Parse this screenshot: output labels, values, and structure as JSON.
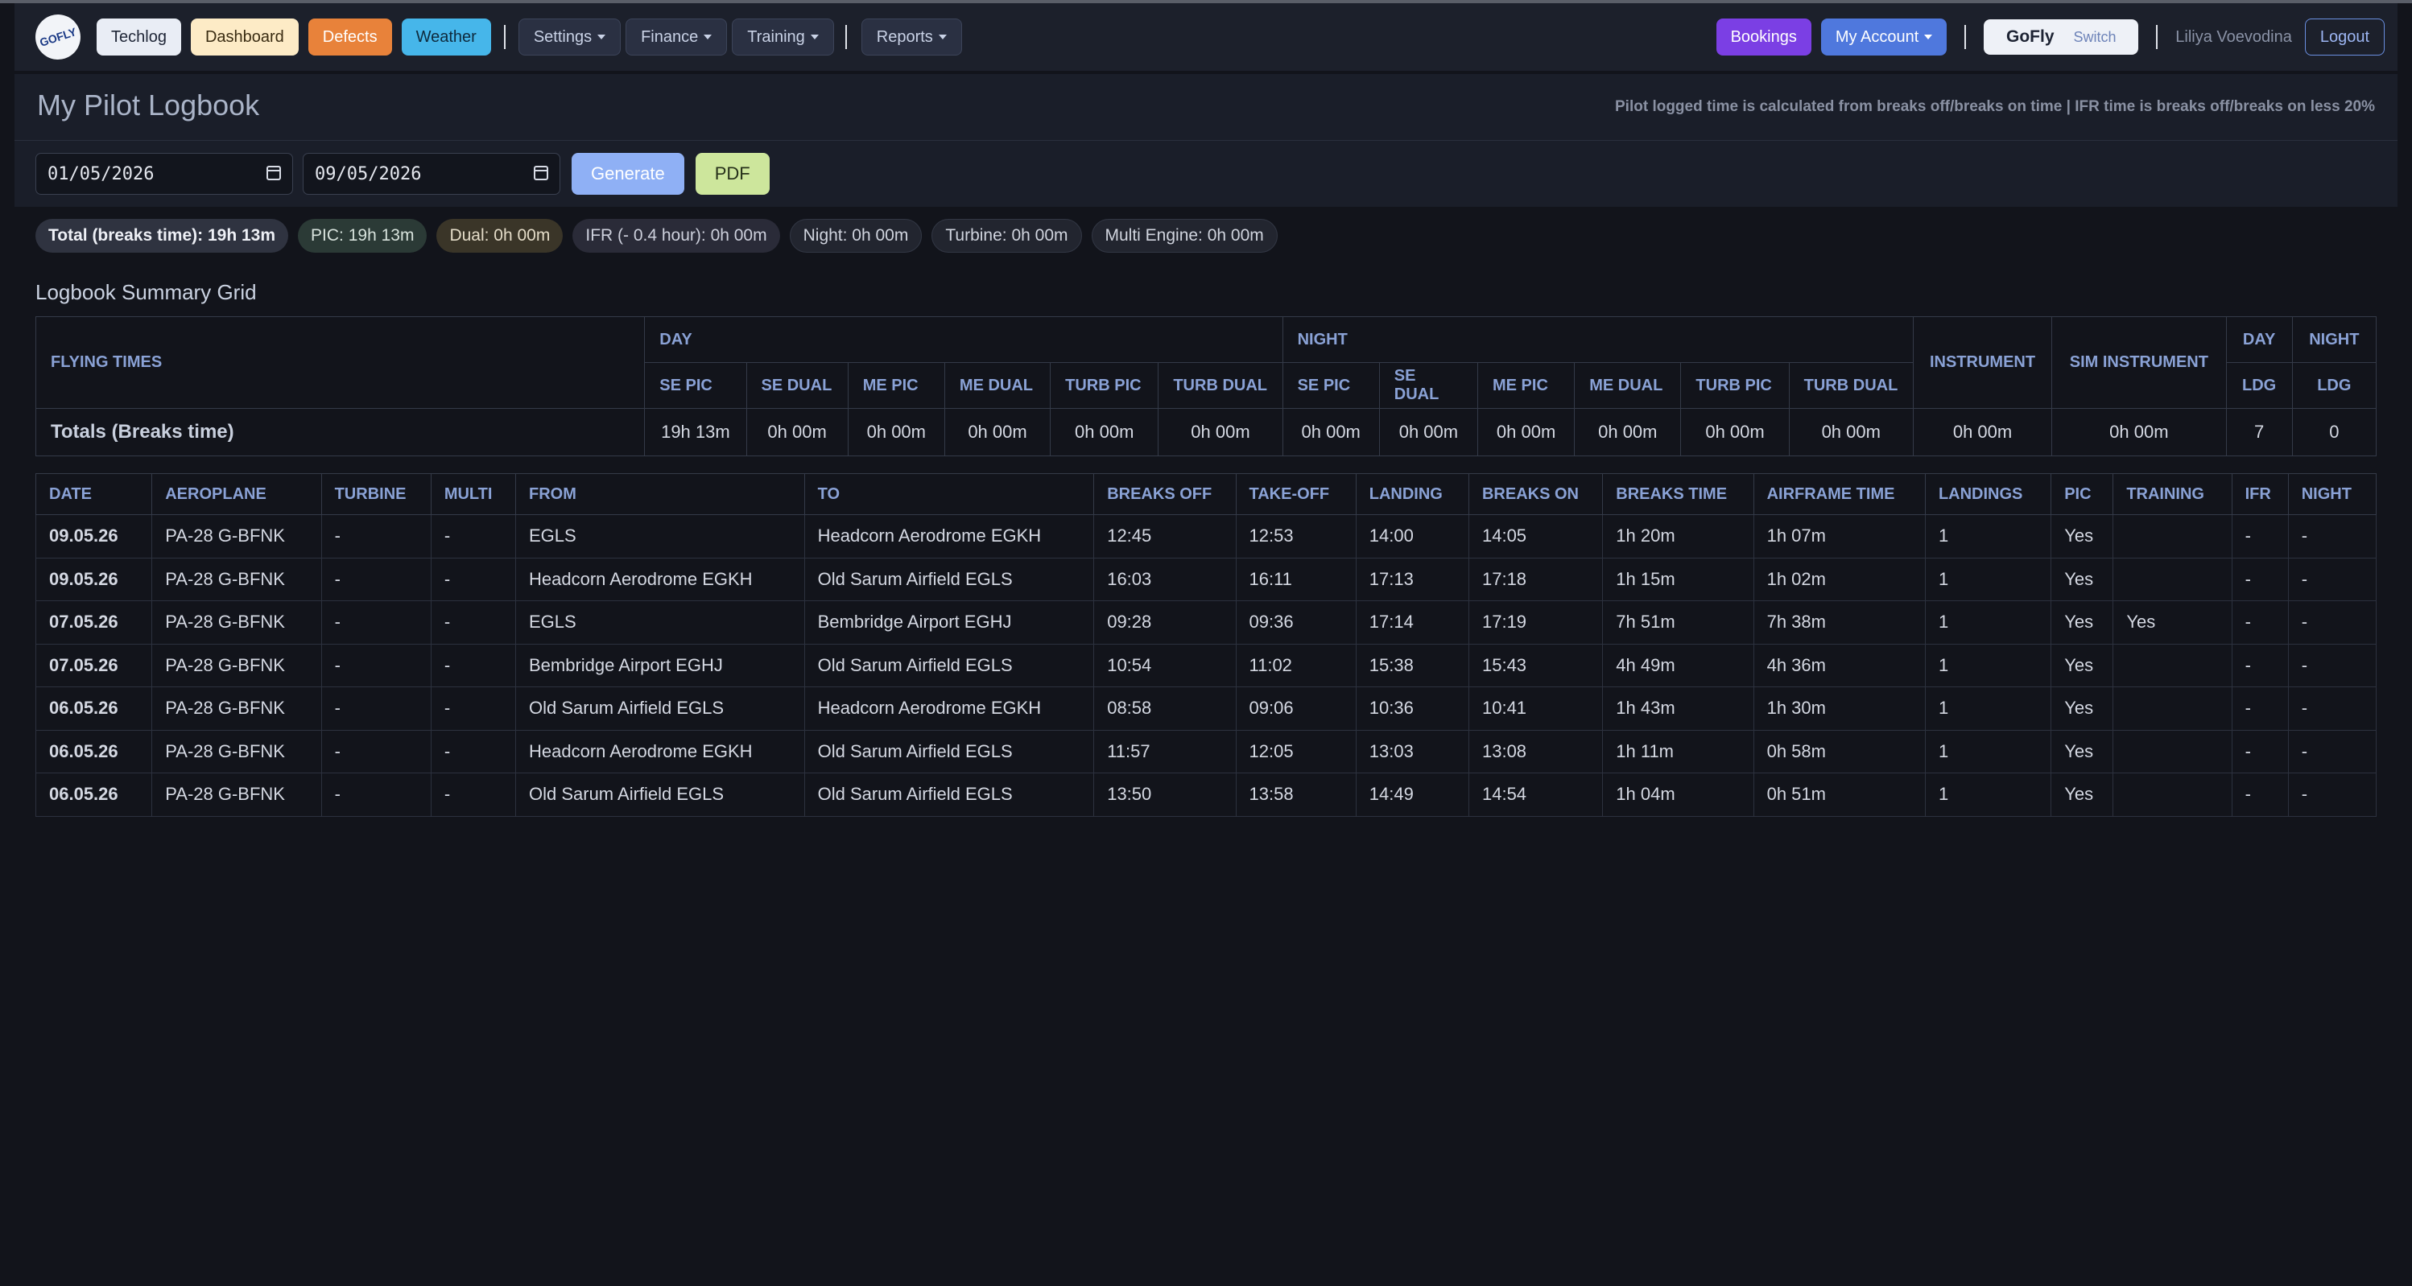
{
  "nav": {
    "logo_text": "GOFLY",
    "techlog": "Techlog",
    "dashboard": "Dashboard",
    "defects": "Defects",
    "weather": "Weather",
    "settings": "Settings",
    "finance": "Finance",
    "training": "Training",
    "reports": "Reports",
    "bookings": "Bookings",
    "my_account": "My Account",
    "org_name": "GoFly",
    "switch": "Switch",
    "user_name": "Liliya Voevodina",
    "logout": "Logout"
  },
  "header": {
    "title": "My Pilot Logbook",
    "note": "Pilot logged time is calculated from breaks off/breaks on time | IFR time is breaks off/breaks on less 20%"
  },
  "filters": {
    "date_from": "01/05/2026",
    "date_to": "09/05/2026",
    "generate": "Generate",
    "pdf": "PDF"
  },
  "badges": {
    "total": "Total (breaks time): 19h 13m",
    "pic": "PIC: 19h 13m",
    "dual": "Dual: 0h 00m",
    "ifr": "IFR (- 0.4 hour): 0h 00m",
    "night": "Night: 0h 00m",
    "turbine": "Turbine: 0h 00m",
    "multi": "Multi Engine: 0h 00m"
  },
  "summary": {
    "title": "Logbook Summary Grid",
    "flying_times": "FLYING TIMES",
    "day": "DAY",
    "night": "NIGHT",
    "instrument": "INSTRUMENT",
    "sim_instrument": "SIM INSTRUMENT",
    "day_ldg_top": "DAY",
    "night_ldg_top": "NIGHT",
    "ldg": "LDG",
    "subcols": [
      "SE PIC",
      "SE DUAL",
      "ME PIC",
      "ME DUAL",
      "TURB PIC",
      "TURB DUAL"
    ],
    "totals_label": "Totals (Breaks time)",
    "day_values": [
      "19h 13m",
      "0h 00m",
      "0h 00m",
      "0h 00m",
      "0h 00m",
      "0h 00m"
    ],
    "night_values": [
      "0h 00m",
      "0h 00m",
      "0h 00m",
      "0h 00m",
      "0h 00m",
      "0h 00m"
    ],
    "instrument_value": "0h 00m",
    "sim_instrument_value": "0h 00m",
    "day_ldg_value": "7",
    "night_ldg_value": "0"
  },
  "log": {
    "columns": [
      "DATE",
      "AEROPLANE",
      "TURBINE",
      "MULTI",
      "FROM",
      "TO",
      "BREAKS OFF",
      "TAKE-OFF",
      "LANDING",
      "BREAKS ON",
      "BREAKS TIME",
      "AIRFRAME TIME",
      "LANDINGS",
      "PIC",
      "TRAINING",
      "IFR",
      "NIGHT"
    ],
    "rows": [
      [
        "09.05.26",
        "PA-28 G-BFNK",
        "-",
        "-",
        "EGLS",
        "Headcorn Aerodrome EGKH",
        "12:45",
        "12:53",
        "14:00",
        "14:05",
        "1h 20m",
        "1h 07m",
        "1",
        "Yes",
        "",
        "-",
        "-"
      ],
      [
        "09.05.26",
        "PA-28 G-BFNK",
        "-",
        "-",
        "Headcorn Aerodrome EGKH",
        "Old Sarum Airfield EGLS",
        "16:03",
        "16:11",
        "17:13",
        "17:18",
        "1h 15m",
        "1h 02m",
        "1",
        "Yes",
        "",
        "-",
        "-"
      ],
      [
        "07.05.26",
        "PA-28 G-BFNK",
        "-",
        "-",
        "EGLS",
        "Bembridge Airport EGHJ",
        "09:28",
        "09:36",
        "17:14",
        "17:19",
        "7h 51m",
        "7h 38m",
        "1",
        "Yes",
        "Yes",
        "-",
        "-"
      ],
      [
        "07.05.26",
        "PA-28 G-BFNK",
        "-",
        "-",
        "Bembridge Airport EGHJ",
        "Old Sarum Airfield EGLS",
        "10:54",
        "11:02",
        "15:38",
        "15:43",
        "4h 49m",
        "4h 36m",
        "1",
        "Yes",
        "",
        "-",
        "-"
      ],
      [
        "06.05.26",
        "PA-28 G-BFNK",
        "-",
        "-",
        "Old Sarum Airfield EGLS",
        "Headcorn Aerodrome EGKH",
        "08:58",
        "09:06",
        "10:36",
        "10:41",
        "1h 43m",
        "1h 30m",
        "1",
        "Yes",
        "",
        "-",
        "-"
      ],
      [
        "06.05.26",
        "PA-28 G-BFNK",
        "-",
        "-",
        "Headcorn Aerodrome EGKH",
        "Old Sarum Airfield EGLS",
        "11:57",
        "12:05",
        "13:03",
        "13:08",
        "1h 11m",
        "0h 58m",
        "1",
        "Yes",
        "",
        "-",
        "-"
      ],
      [
        "06.05.26",
        "PA-28 G-BFNK",
        "-",
        "-",
        "Old Sarum Airfield EGLS",
        "Old Sarum Airfield EGLS",
        "13:50",
        "13:58",
        "14:49",
        "14:54",
        "1h 04m",
        "0h 51m",
        "1",
        "Yes",
        "",
        "-",
        "-"
      ]
    ]
  }
}
